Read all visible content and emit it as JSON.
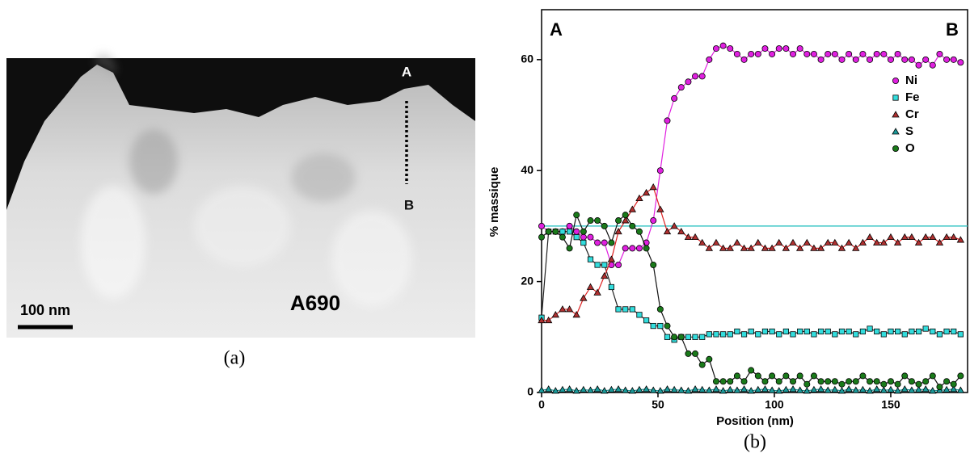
{
  "image_panel": {
    "point_a": "A",
    "point_b": "B",
    "scale_bar": "100 nm",
    "sample": "A690",
    "caption": "(a)"
  },
  "chart_data": {
    "type": "line",
    "xlabel": "Position (nm)",
    "ylabel": "% massique",
    "annotations": [
      "A",
      "B"
    ],
    "caption": "(b)",
    "xlim": [
      0,
      183
    ],
    "ylim": [
      0,
      69
    ],
    "xticks": [
      0,
      50,
      100,
      150
    ],
    "yticks": [
      0,
      20,
      40,
      60
    ],
    "legend": "upper right",
    "reference_line": {
      "value": 30,
      "color": "#40c8c8"
    },
    "x": [
      0,
      3,
      6,
      9,
      12,
      15,
      18,
      21,
      24,
      27,
      30,
      33,
      36,
      39,
      42,
      45,
      48,
      51,
      54,
      57,
      60,
      63,
      66,
      69,
      72,
      75,
      78,
      81,
      84,
      87,
      90,
      93,
      96,
      99,
      102,
      105,
      108,
      111,
      114,
      117,
      120,
      123,
      126,
      129,
      132,
      135,
      138,
      141,
      144,
      147,
      150,
      153,
      156,
      159,
      162,
      165,
      168,
      171,
      174,
      177,
      180
    ],
    "series": [
      {
        "name": "Ni",
        "color": "#e020e0",
        "line_color": "#e020e0",
        "marker": "circle",
        "values": [
          30,
          29,
          29,
          29,
          30,
          29,
          28,
          28,
          27,
          27,
          23,
          23,
          26,
          26,
          26,
          27,
          31,
          40,
          49,
          53,
          55,
          56,
          57,
          57,
          60,
          62,
          62.5,
          62,
          61,
          60,
          61,
          61,
          62,
          61,
          62,
          62,
          61,
          62,
          61,
          61,
          60,
          61,
          61,
          60,
          61,
          60,
          61,
          60,
          61,
          61,
          60,
          61,
          60,
          60,
          59,
          60,
          59,
          61,
          60,
          60,
          59.5
        ]
      },
      {
        "name": "Fe",
        "color": "#33dddd",
        "line_color": "#222222",
        "marker": "square",
        "values": [
          13.5,
          29,
          29,
          29,
          29,
          28,
          27,
          24,
          23,
          23,
          19,
          15,
          15,
          15,
          14,
          13,
          12,
          12,
          10,
          9.5,
          10,
          10,
          10,
          10,
          10.5,
          10.5,
          10.5,
          10.5,
          11,
          10.5,
          11,
          10.5,
          11,
          11,
          10.5,
          11,
          10.5,
          11,
          11,
          10.5,
          11,
          11,
          10.5,
          11,
          11,
          10.5,
          11,
          11.5,
          11,
          10.5,
          11,
          11,
          10.5,
          11,
          11,
          11.5,
          11,
          10.5,
          11,
          11,
          10.5
        ]
      },
      {
        "name": "Cr",
        "color": "#b03030",
        "line_color": "#dd2020",
        "marker": "triangle",
        "values": [
          13,
          13,
          14,
          15,
          15,
          14,
          17,
          19,
          18,
          21,
          24,
          29,
          31,
          33,
          35,
          36,
          37,
          33,
          29,
          30,
          29,
          28,
          28,
          27,
          26,
          27,
          26,
          26,
          27,
          26,
          26,
          27,
          26,
          26,
          27,
          26,
          27,
          26,
          27,
          26,
          26,
          27,
          27,
          26,
          27,
          26,
          27,
          28,
          27,
          27,
          28,
          27,
          28,
          28,
          27,
          28,
          28,
          27,
          28,
          28,
          27.5
        ]
      },
      {
        "name": "S",
        "color": "#1a9a9a",
        "line_color": "#1a9a9a",
        "marker": "triangle",
        "values": [
          0.4,
          0.6,
          0.3,
          0.5,
          0.6,
          0.3,
          0.5,
          0.4,
          0.6,
          0.3,
          0.5,
          0.6,
          0.4,
          0.3,
          0.5,
          0.6,
          0.4,
          0.3,
          0.6,
          0.5,
          0.4,
          0.3,
          0.6,
          0.5,
          0.4,
          0.6,
          0.3,
          0.5,
          0.4,
          0.6,
          0.3,
          0.5,
          0.6,
          0.4,
          0.3,
          0.5,
          0.6,
          0.4,
          0.3,
          0.5,
          0.6,
          0.4,
          0.5,
          0.3,
          0.6,
          0.4,
          0.5,
          0.3,
          0.6,
          0.4,
          0.5,
          0.3,
          0.6,
          0.4,
          0.5,
          0.6,
          0.3,
          0.4,
          0.5,
          0.6,
          0.4
        ]
      },
      {
        "name": "O",
        "color": "#1a7a1a",
        "line_color": "#111111",
        "marker": "circle",
        "values": [
          28,
          29,
          29,
          28,
          26,
          32,
          29,
          31,
          31,
          30,
          27,
          31,
          32,
          30,
          29,
          26,
          23,
          15,
          12,
          10,
          10,
          7,
          7,
          5,
          6,
          2,
          2,
          2,
          3,
          2,
          4,
          3,
          2,
          3,
          2,
          3,
          2,
          3,
          1.5,
          3,
          2,
          2,
          2,
          1.5,
          2,
          2,
          3,
          2,
          2,
          1.5,
          2,
          1.5,
          3,
          2,
          1.5,
          2,
          3,
          1,
          2,
          1.5,
          3
        ]
      }
    ]
  }
}
